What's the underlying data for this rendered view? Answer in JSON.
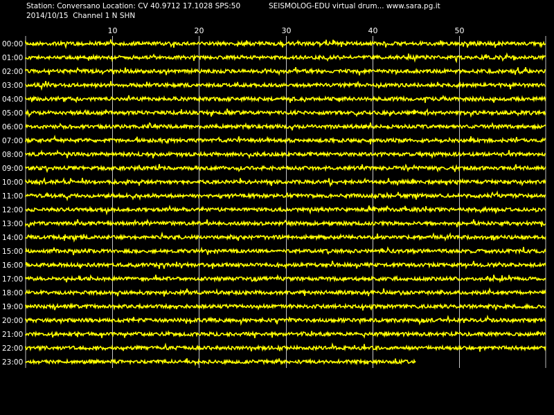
{
  "header": {
    "line1_left": "Station: Conversano Location: CV 40.9712 17.1028 SPS:50",
    "line1_right": "SEISMOLOG-EDU virtual drum... www.sara.pg.it",
    "line2_left": "2014/10/15  Channel 1 N SHN"
  },
  "chart_data": {
    "type": "line",
    "title": "",
    "xlabel": "",
    "ylabel": "",
    "x_unit_hint": "minutes past the hour",
    "xlim": [
      0,
      60
    ],
    "x_ticks": [
      "10",
      "20",
      "30",
      "40",
      "50"
    ],
    "grid": true,
    "trace_color": "#ffff00",
    "grid_color": "#c8c8c8",
    "background": "#000000",
    "rows": [
      "00:00",
      "01:00",
      "02:00",
      "03:00",
      "04:00",
      "05:00",
      "06:00",
      "07:00",
      "08:00",
      "09:00",
      "10:00",
      "11:00",
      "12:00",
      "13:00",
      "14:00",
      "15:00",
      "16:00",
      "17:00",
      "18:00",
      "19:00",
      "20:00",
      "21:00",
      "22:00",
      "23:00"
    ],
    "last_row_end_minute": 45
  }
}
